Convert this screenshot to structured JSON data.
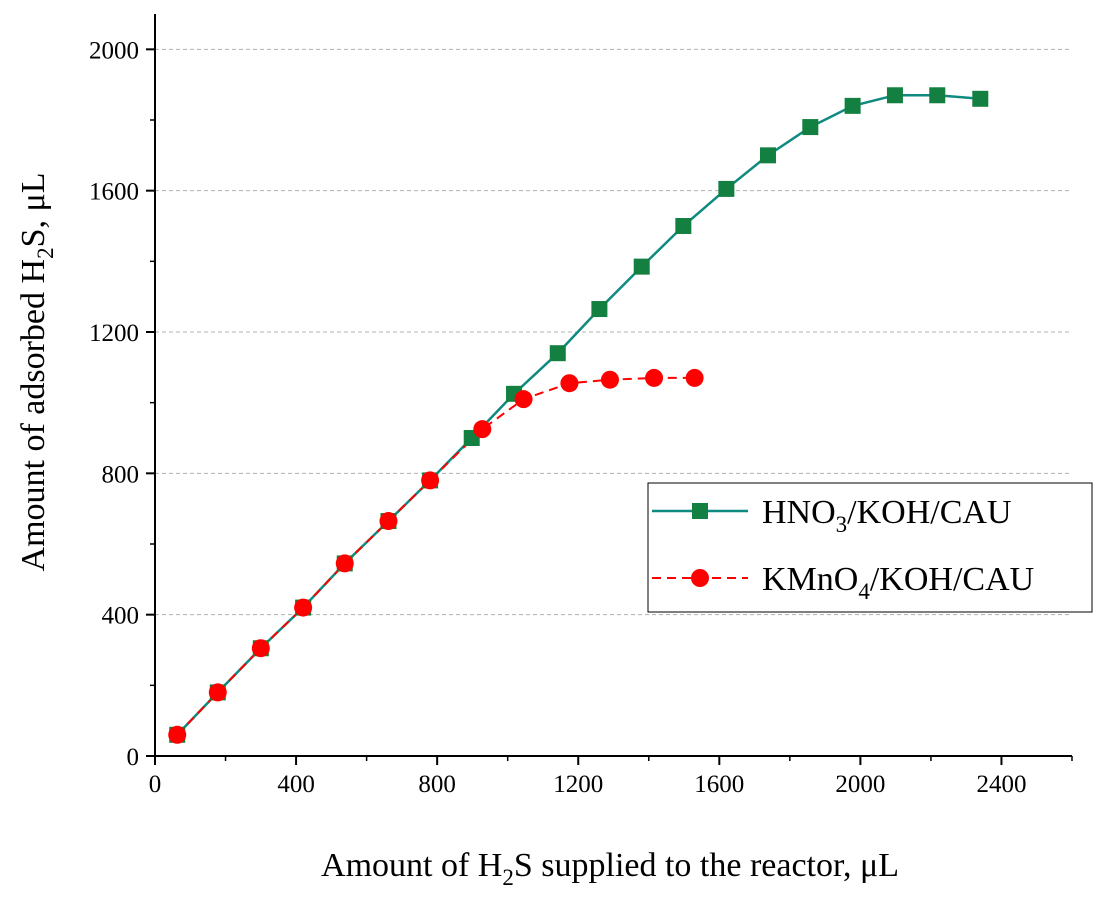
{
  "chart_data": {
    "type": "line",
    "title": "",
    "xlabel": "Amount of H₂S supplied to the reactor, μL",
    "ylabel": "Amount of adsorbed H₂S, μL",
    "xlabel_parts": {
      "before": "Amount of H",
      "sub": "2",
      "after": "S supplied to the reactor, μL"
    },
    "ylabel_parts": {
      "before": "Amount of adsorbed H",
      "sub": "2",
      "after": "S, μL"
    },
    "xlim": [
      0,
      2600
    ],
    "ylim": [
      0,
      2100
    ],
    "xticks": [
      0,
      400,
      800,
      1200,
      1600,
      2000,
      2400
    ],
    "yticks": [
      0,
      400,
      800,
      1200,
      1600,
      2000
    ],
    "grid": "horizontal dashed",
    "legend_position": "right",
    "series": [
      {
        "name": "HNO₃/KOH/CAU",
        "name_parts": {
          "before": "HNO",
          "sub": "3",
          "after": "/KOH/CAU"
        },
        "color": "#0e8a80",
        "marker_color": "#138041",
        "marker": "square",
        "line_style": "solid",
        "x": [
          63,
          178,
          300,
          420,
          538,
          662,
          780,
          898,
          1018,
          1142,
          1260,
          1380,
          1498,
          1620,
          1738,
          1858,
          1978,
          2098,
          2218,
          2340
        ],
        "y": [
          60,
          180,
          305,
          420,
          545,
          665,
          780,
          900,
          1025,
          1140,
          1265,
          1385,
          1500,
          1605,
          1700,
          1780,
          1840,
          1870,
          1870,
          1860
        ]
      },
      {
        "name": "KMnO₄/KOH/CAU",
        "name_parts": {
          "before": "KMnO",
          "sub": "4",
          "after": "/KOH/CAU"
        },
        "color": "#ff0000",
        "marker_color": "#ff0000",
        "marker": "circle",
        "line_style": "dashed",
        "x": [
          63,
          178,
          300,
          420,
          538,
          662,
          780,
          928,
          1045,
          1175,
          1290,
          1415,
          1530
        ],
        "y": [
          60,
          180,
          305,
          420,
          545,
          665,
          780,
          925,
          1010,
          1055,
          1065,
          1070,
          1070
        ]
      }
    ]
  }
}
